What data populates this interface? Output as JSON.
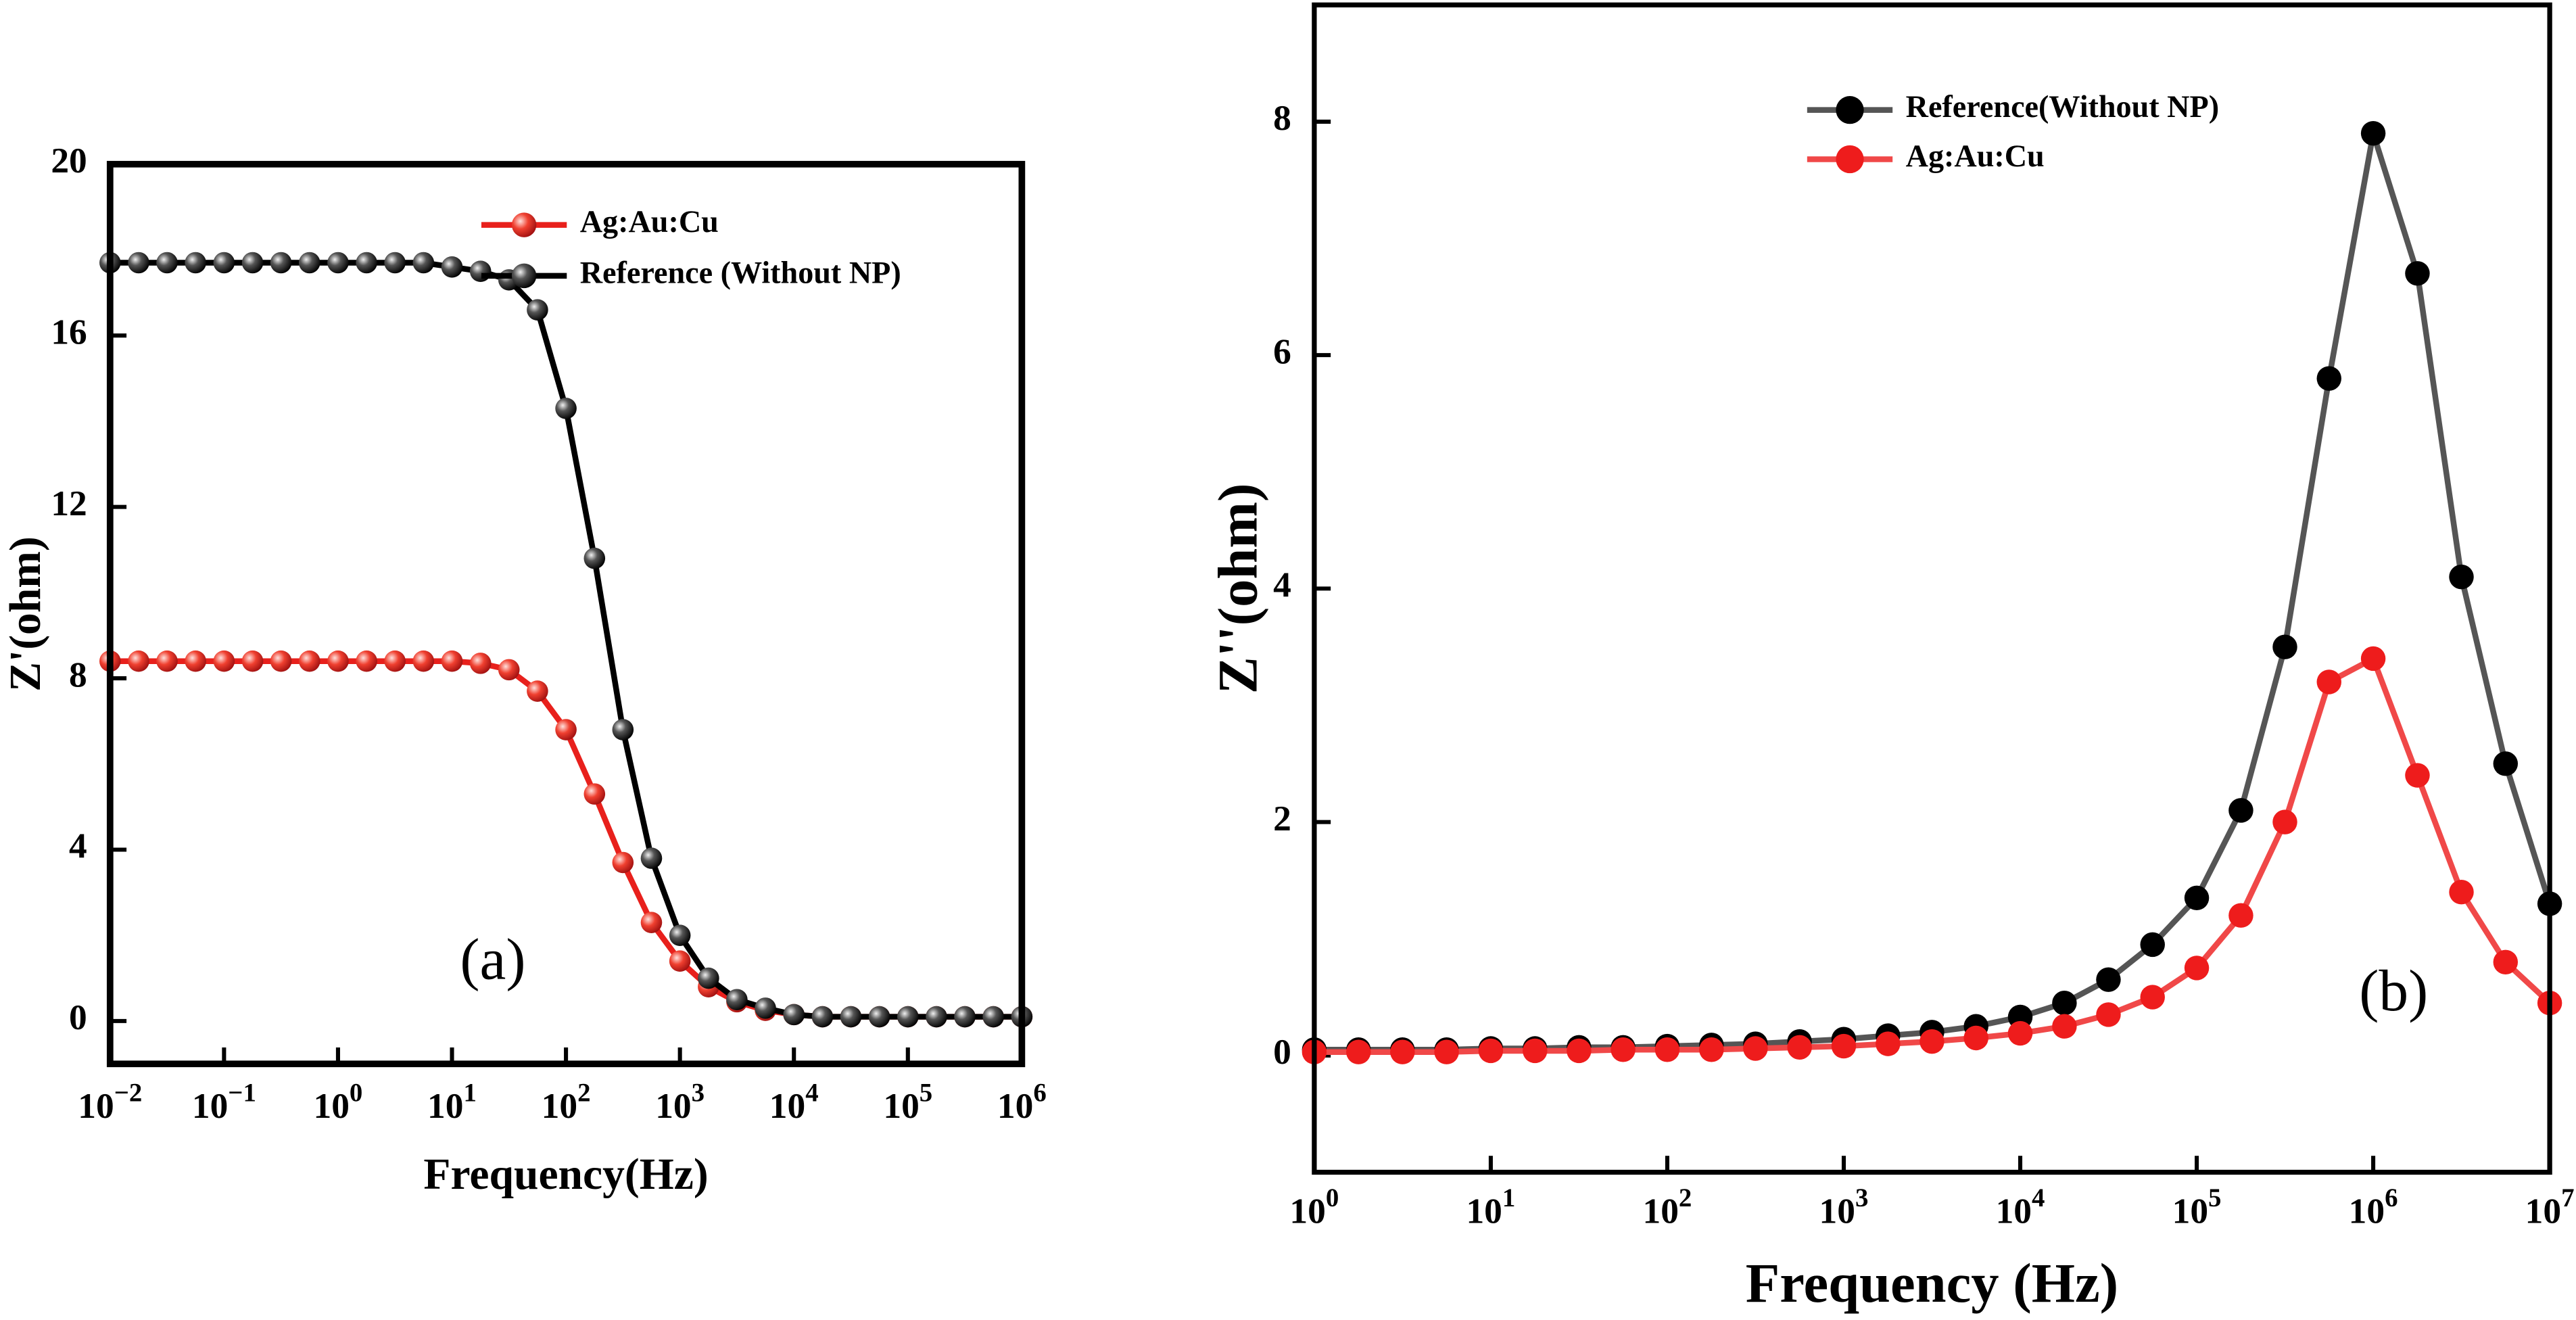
{
  "chart_data": [
    {
      "type": "line",
      "xscale": "log",
      "annotation": "(a)",
      "xlabel": "Frequency(Hz)",
      "ylabel": "Z'(ohm)",
      "x": [
        0.01,
        0.0178,
        0.0316,
        0.0562,
        0.1,
        0.178,
        0.316,
        0.562,
        1,
        1.78,
        3.16,
        5.62,
        10,
        17.8,
        31.6,
        56.2,
        100,
        178,
        316,
        562,
        1000,
        1780,
        3160,
        5620,
        10000,
        17800,
        31600,
        56200,
        100000,
        178000,
        316000,
        562000,
        1000000
      ],
      "xlim": [
        0.01,
        1000000
      ],
      "xticks": [
        {
          "value": 0.01,
          "label": "10−2"
        },
        {
          "value": 0.1,
          "label": "10−1"
        },
        {
          "value": 1,
          "label": "100"
        },
        {
          "value": 10,
          "label": "101"
        },
        {
          "value": 100,
          "label": "102"
        },
        {
          "value": 1000,
          "label": "103"
        },
        {
          "value": 10000,
          "label": "104"
        },
        {
          "value": 100000,
          "label": "105"
        },
        {
          "value": 1000000,
          "label": "106"
        }
      ],
      "ylim": [
        -1,
        20
      ],
      "yticks": [
        0,
        4,
        8,
        12,
        16,
        20
      ],
      "series": [
        {
          "name": "Ag:Au:Cu",
          "color": "#e8201c",
          "marker": "sphere-red",
          "line_color": "#e8201c",
          "values": [
            8.4,
            8.4,
            8.4,
            8.4,
            8.4,
            8.4,
            8.4,
            8.4,
            8.4,
            8.4,
            8.4,
            8.4,
            8.4,
            8.35,
            8.2,
            7.7,
            6.8,
            5.3,
            3.7,
            2.3,
            1.4,
            0.8,
            0.45,
            0.25,
            0.15,
            0.1,
            0.1,
            0.1,
            0.1,
            0.1,
            0.1,
            0.1,
            0.1
          ]
        },
        {
          "name": "Reference (Without NP)",
          "color": "#111111",
          "marker": "sphere-black",
          "line_color": "#000000",
          "values": [
            17.7,
            17.7,
            17.7,
            17.7,
            17.7,
            17.7,
            17.7,
            17.7,
            17.7,
            17.7,
            17.7,
            17.7,
            17.6,
            17.5,
            17.3,
            16.6,
            14.3,
            10.8,
            6.8,
            3.8,
            2.0,
            1.0,
            0.5,
            0.3,
            0.15,
            0.1,
            0.1,
            0.1,
            0.1,
            0.1,
            0.1,
            0.1,
            0.1
          ]
        }
      ]
    },
    {
      "type": "line",
      "xscale": "log",
      "annotation": "(b)",
      "xlabel": "Frequency (Hz)",
      "ylabel": "Z''(ohm)",
      "x": [
        1,
        1.78,
        3.16,
        5.62,
        10,
        17.8,
        31.6,
        56.2,
        100,
        178,
        316,
        562,
        1000,
        1780,
        3160,
        5620,
        10000,
        17800,
        31600,
        56200,
        100000,
        178000,
        316000,
        562000,
        1000000,
        1780000,
        3160000,
        5620000,
        10000000
      ],
      "xlim": [
        1,
        10000000
      ],
      "xticks": [
        {
          "value": 1,
          "label": "100"
        },
        {
          "value": 10,
          "label": "101"
        },
        {
          "value": 100,
          "label": "102"
        },
        {
          "value": 1000,
          "label": "103"
        },
        {
          "value": 10000,
          "label": "104"
        },
        {
          "value": 100000,
          "label": "105"
        },
        {
          "value": 1000000,
          "label": "106"
        },
        {
          "value": 10000000,
          "label": "107"
        }
      ],
      "ylim": [
        -1,
        9
      ],
      "yticks": [
        0,
        2,
        4,
        6,
        8
      ],
      "series": [
        {
          "name": "Reference(Without NP)",
          "color": "#000000",
          "marker": "dot",
          "line_color": "#555555",
          "values": [
            0.05,
            0.05,
            0.05,
            0.05,
            0.06,
            0.06,
            0.07,
            0.07,
            0.08,
            0.09,
            0.1,
            0.12,
            0.14,
            0.17,
            0.2,
            0.25,
            0.33,
            0.45,
            0.65,
            0.95,
            1.35,
            2.1,
            3.5,
            5.8,
            7.9,
            6.7,
            4.1,
            2.5,
            1.3
          ]
        },
        {
          "name": "Ag:Au:Cu",
          "color": "#ee1c1c",
          "marker": "dot",
          "line_color": "#f04848",
          "values": [
            0.03,
            0.03,
            0.03,
            0.03,
            0.04,
            0.04,
            0.04,
            0.05,
            0.05,
            0.05,
            0.06,
            0.07,
            0.08,
            0.1,
            0.12,
            0.15,
            0.19,
            0.25,
            0.35,
            0.5,
            0.75,
            1.2,
            2.0,
            3.2,
            3.4,
            2.4,
            1.4,
            0.8,
            0.45
          ]
        }
      ]
    }
  ]
}
